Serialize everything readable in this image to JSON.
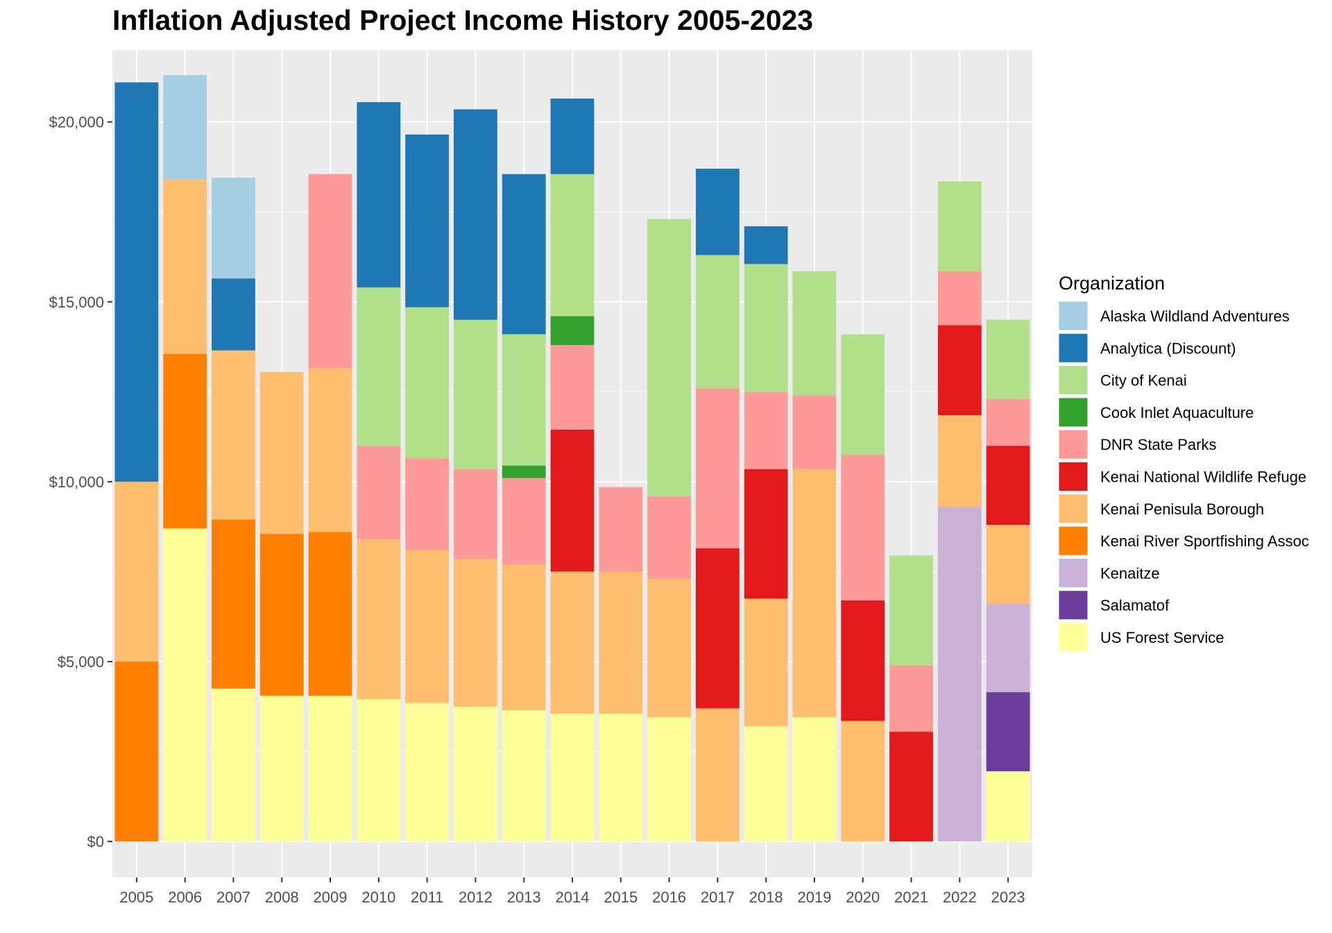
{
  "chart_data": {
    "type": "bar",
    "stacked": true,
    "title": "Inflation Adjusted Project Income History 2005-2023",
    "xlabel": "",
    "ylabel": "",
    "categories": [
      "2005",
      "2006",
      "2007",
      "2008",
      "2009",
      "2010",
      "2011",
      "2012",
      "2013",
      "2014",
      "2015",
      "2016",
      "2017",
      "2018",
      "2019",
      "2020",
      "2021",
      "2022",
      "2023"
    ],
    "ylim": [
      -1000,
      22000
    ],
    "y_ticks": [
      0,
      5000,
      10000,
      15000,
      20000
    ],
    "y_tick_labels": [
      "$0",
      "$5,000",
      "$10,000",
      "$15,000",
      "$20,000"
    ],
    "grid": true,
    "legend_title": "Organization",
    "legend_position": "right",
    "series": [
      {
        "name": "Alaska Wildland Adventures",
        "color": "#a6cee3",
        "values": [
          0,
          2900,
          2800,
          0,
          0,
          0,
          0,
          0,
          0,
          0,
          0,
          0,
          0,
          0,
          0,
          0,
          0,
          0,
          0
        ]
      },
      {
        "name": "Analytica (Discount)",
        "color": "#1f78b4",
        "values": [
          11100,
          0,
          2000,
          0,
          0,
          5150,
          4800,
          5850,
          4450,
          2100,
          0,
          0,
          2400,
          1050,
          0,
          0,
          0,
          0,
          0
        ]
      },
      {
        "name": "City of Kenai",
        "color": "#b2df8a",
        "values": [
          0,
          0,
          0,
          0,
          0,
          4400,
          4200,
          4150,
          3650,
          3950,
          0,
          7700,
          3700,
          3550,
          3450,
          3350,
          3050,
          2500,
          2200
        ]
      },
      {
        "name": "Cook Inlet Aquaculture",
        "color": "#33a02c",
        "values": [
          0,
          0,
          0,
          0,
          0,
          0,
          0,
          0,
          350,
          800,
          0,
          0,
          0,
          0,
          0,
          0,
          0,
          0,
          0
        ]
      },
      {
        "name": "DNR State Parks",
        "color": "#fb9a99",
        "values": [
          0,
          0,
          0,
          0,
          5400,
          2600,
          2550,
          2500,
          2400,
          2350,
          2350,
          2300,
          4450,
          2150,
          2050,
          4050,
          1850,
          1500,
          1300
        ]
      },
      {
        "name": "Kenai National Wildlife Refuge",
        "color": "#e31a1c",
        "values": [
          0,
          0,
          0,
          0,
          0,
          0,
          0,
          0,
          0,
          3950,
          0,
          0,
          4450,
          3600,
          0,
          3350,
          3050,
          2500,
          2200
        ]
      },
      {
        "name": "Kenai Penisula Borough",
        "color": "#fdbf6f",
        "values": [
          5000,
          4850,
          4700,
          4500,
          4550,
          4450,
          4250,
          4100,
          4050,
          3950,
          3950,
          3850,
          3700,
          3550,
          6900,
          3350,
          0,
          2550,
          2200
        ]
      },
      {
        "name": "Kenai River Sportfishing Assoc",
        "color": "#ff7f00",
        "values": [
          5000,
          4850,
          4700,
          4500,
          4550,
          0,
          0,
          0,
          0,
          0,
          0,
          0,
          0,
          0,
          0,
          0,
          0,
          0,
          0
        ]
      },
      {
        "name": "Kenaitze",
        "color": "#cab2d6",
        "values": [
          0,
          0,
          0,
          0,
          0,
          0,
          0,
          0,
          0,
          0,
          0,
          0,
          0,
          0,
          0,
          0,
          0,
          9300,
          2450
        ]
      },
      {
        "name": "Salamatof",
        "color": "#6a3d9a",
        "values": [
          0,
          0,
          0,
          0,
          0,
          0,
          0,
          0,
          0,
          0,
          0,
          0,
          0,
          0,
          0,
          0,
          0,
          0,
          2200
        ]
      },
      {
        "name": "US Forest Service",
        "color": "#ffff99",
        "values": [
          0,
          8700,
          4250,
          4050,
          4050,
          3950,
          3850,
          3750,
          3650,
          3550,
          3550,
          3450,
          0,
          3200,
          3450,
          0,
          0,
          0,
          1950
        ]
      }
    ],
    "stack_order_bottom_to_top": [
      "US Forest Service",
      "Salamatof",
      "Kenaitze",
      "Kenai River Sportfishing Assoc",
      "Kenai Penisula Borough",
      "Kenai National Wildlife Refuge",
      "DNR State Parks",
      "Cook Inlet Aquaculture",
      "City of Kenai",
      "Analytica (Discount)",
      "Alaska Wildland Adventures"
    ]
  }
}
